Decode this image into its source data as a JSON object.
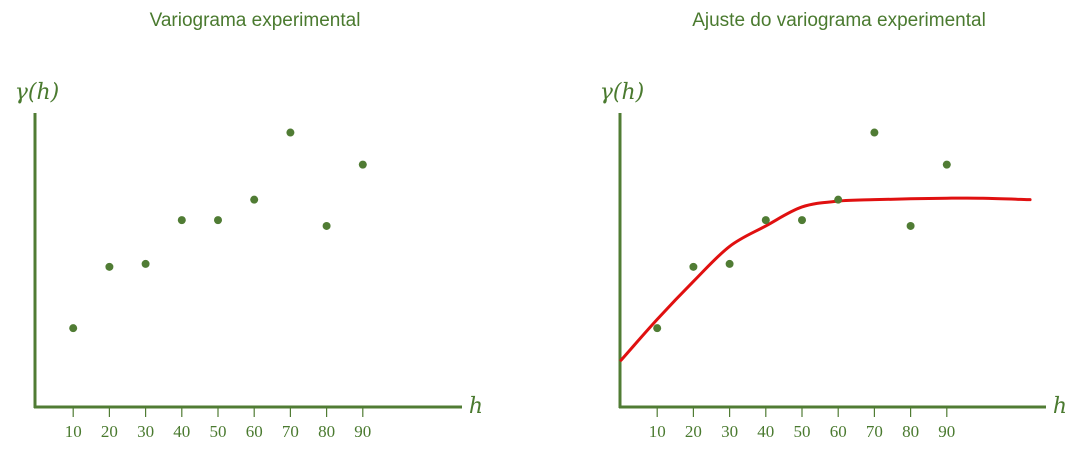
{
  "colors": {
    "axis": "#507c34",
    "point": "#507c34",
    "text": "#4a7a2f",
    "fit": "#e01010"
  },
  "chart_data": [
    {
      "type": "scatter",
      "title": "Variograma experimental",
      "xlabel": "h",
      "ylabel": "γ(h)",
      "x_ticks": [
        "10",
        "20",
        "30",
        "40",
        "50",
        "60",
        "70",
        "80",
        "90"
      ],
      "xlim": [
        0,
        110
      ],
      "ylim": [
        0,
        10
      ],
      "grid": false,
      "series": [
        {
          "type": "scatter",
          "points": [
            [
              10,
              2.7
            ],
            [
              20,
              4.8
            ],
            [
              30,
              4.9
            ],
            [
              40,
              6.4
            ],
            [
              50,
              6.4
            ],
            [
              60,
              7.1
            ],
            [
              70,
              9.4
            ],
            [
              80,
              6.2
            ],
            [
              90,
              8.3
            ]
          ]
        }
      ]
    },
    {
      "type": "scatter",
      "title": "Ajuste do variograma experimental",
      "xlabel": "h",
      "ylabel": "γ(h)",
      "x_ticks": [
        "10",
        "20",
        "30",
        "40",
        "50",
        "60",
        "70",
        "80",
        "90"
      ],
      "xlim": [
        0,
        110
      ],
      "ylim": [
        0,
        10
      ],
      "grid": false,
      "series": [
        {
          "type": "scatter",
          "points": [
            [
              10,
              2.7
            ],
            [
              20,
              4.8
            ],
            [
              30,
              4.9
            ],
            [
              40,
              6.4
            ],
            [
              50,
              6.4
            ],
            [
              60,
              7.1
            ],
            [
              70,
              9.4
            ],
            [
              80,
              6.2
            ],
            [
              90,
              8.3
            ]
          ]
        },
        {
          "type": "line",
          "points": [
            [
              0,
              1.6
            ],
            [
              10,
              3.0
            ],
            [
              20,
              4.3
            ],
            [
              30,
              5.5
            ],
            [
              40,
              6.2
            ],
            [
              50,
              6.85
            ],
            [
              60,
              7.05
            ],
            [
              70,
              7.1
            ],
            [
              80,
              7.13
            ],
            [
              90,
              7.15
            ],
            [
              100,
              7.15
            ],
            [
              113,
              7.1
            ]
          ]
        }
      ]
    }
  ]
}
